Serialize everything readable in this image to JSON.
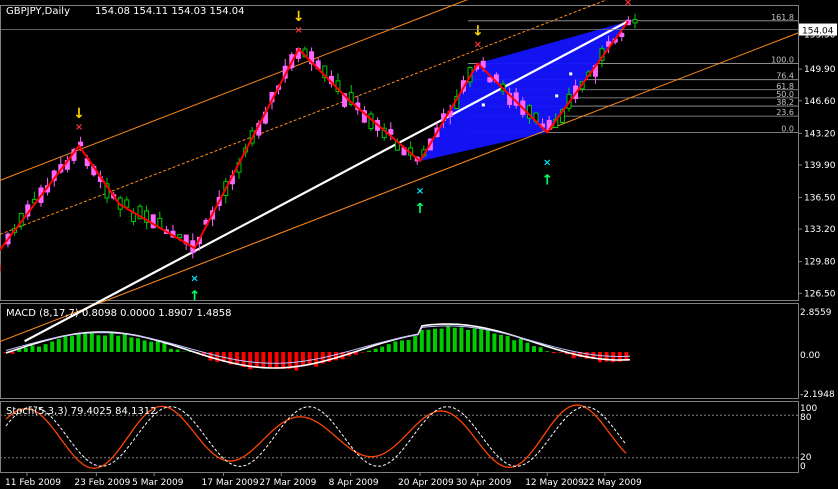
{
  "header": {
    "symbol": "GBPJPY,Daily",
    "ohlc": "154.08 154.11 154.03 154.04"
  },
  "colors": {
    "background": "#000000",
    "text": "#ffffff",
    "candle_body": "#ffffff",
    "bear_candle": "#ff66ff",
    "bull_candle": "#00cc00",
    "zigzag": "#ff0000",
    "trendline": "#ffffff",
    "channel": "#ff8c1a",
    "fib_lines": "#a0a0a0",
    "triangle": "#1414ff",
    "macd_up": "#00cc00",
    "macd_down": "#ff0000",
    "stoch_main": "#ff4400",
    "stoch_signal": "#ffffff"
  },
  "chart_data": {
    "type": "candlestick",
    "price_axis_ticks": [
      "153.50",
      "149.90",
      "146.60",
      "143.20",
      "139.90",
      "136.50",
      "133.20",
      "129.80",
      "126.50"
    ],
    "current_price": "154.04",
    "x_axis_dates": [
      "11 Feb 2009",
      "23 Feb 2009",
      "5 Mar 2009",
      "17 Mar 2009",
      "27 Mar 2009",
      "8 Apr 2009",
      "20 Apr 2009",
      "30 Apr 2009",
      "12 May 2009",
      "22 May 2009"
    ],
    "zigzag_points": [
      {
        "date": "6 Feb 2009",
        "price": 130.8
      },
      {
        "date": "20 Feb 2009",
        "price": 141.9
      },
      {
        "date": "27 Feb 2009",
        "price": 135.8
      },
      {
        "date": "12 Mar 2009",
        "price": 131.2
      },
      {
        "date": "30 Mar 2009",
        "price": 152.0
      },
      {
        "date": "8 Apr 2009",
        "price": 146.5
      },
      {
        "date": "20 Apr 2009",
        "price": 140.3
      },
      {
        "date": "30 Apr 2009",
        "price": 150.5
      },
      {
        "date": "12 May 2009",
        "price": 143.3
      },
      {
        "date": "26 May 2009",
        "price": 154.9
      }
    ],
    "fibonacci": {
      "levels": [
        "161.8",
        "100.0",
        "76.4",
        "61.8",
        "50.0",
        "38.2",
        "23.6",
        "0.0"
      ]
    },
    "indicators": {
      "macd": {
        "label": "MACD (8,17,7) 0.8098 0.0000 1.8907 1.4858",
        "scale": [
          "2.8559",
          "0.00",
          "-2.1948"
        ]
      },
      "stoch": {
        "label": "Stoch(5,3,3) 79.4025 84.1312",
        "scale": [
          "100",
          "80",
          "20",
          "0"
        ]
      }
    }
  }
}
